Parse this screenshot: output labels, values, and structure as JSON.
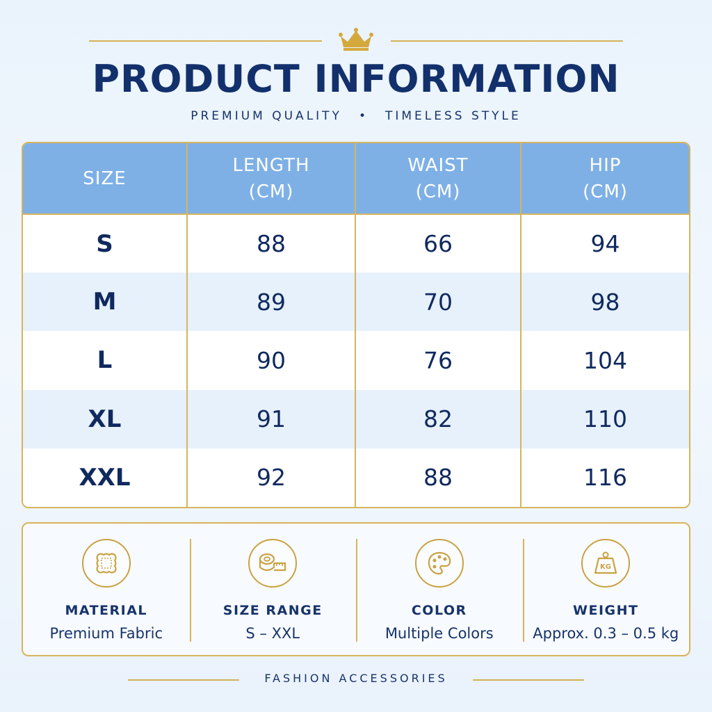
{
  "header": {
    "title": "PRODUCT INFORMATION",
    "subtitle_left": "PREMIUM QUALITY",
    "subtitle_sep": "•",
    "subtitle_right": "TIMELESS STYLE"
  },
  "table": {
    "columns": [
      {
        "line1": "SIZE",
        "line2": ""
      },
      {
        "line1": "LENGTH",
        "line2": "(CM)"
      },
      {
        "line1": "WAIST",
        "line2": "(CM)"
      },
      {
        "line1": "HIP",
        "line2": "(CM)"
      }
    ],
    "rows": [
      {
        "size": "S",
        "length": "88",
        "waist": "66",
        "hip": "94"
      },
      {
        "size": "M",
        "length": "89",
        "waist": "70",
        "hip": "98"
      },
      {
        "size": "L",
        "length": "90",
        "waist": "76",
        "hip": "104"
      },
      {
        "size": "XL",
        "length": "91",
        "waist": "82",
        "hip": "110"
      },
      {
        "size": "XXL",
        "length": "92",
        "waist": "88",
        "hip": "116"
      }
    ]
  },
  "info": [
    {
      "icon": "fabric-swatch-icon",
      "label": "MATERIAL",
      "value": "Premium Fabric"
    },
    {
      "icon": "measuring-tape-icon",
      "label": "SIZE RANGE",
      "value": "S – XXL"
    },
    {
      "icon": "color-palette-icon",
      "label": "COLOR",
      "value": "Multiple Colors"
    },
    {
      "icon": "weight-kg-icon",
      "label": "WEIGHT",
      "value": "Approx. 0.3 – 0.5 kg",
      "icon_text": "KG"
    }
  ],
  "footer": {
    "text": "FASHION ACCESSORIES"
  },
  "colors": {
    "navy": "#12306b",
    "gold": "#c9a243",
    "header_blue": "#7eb0e6",
    "row_alt": "#e6f1fc"
  }
}
